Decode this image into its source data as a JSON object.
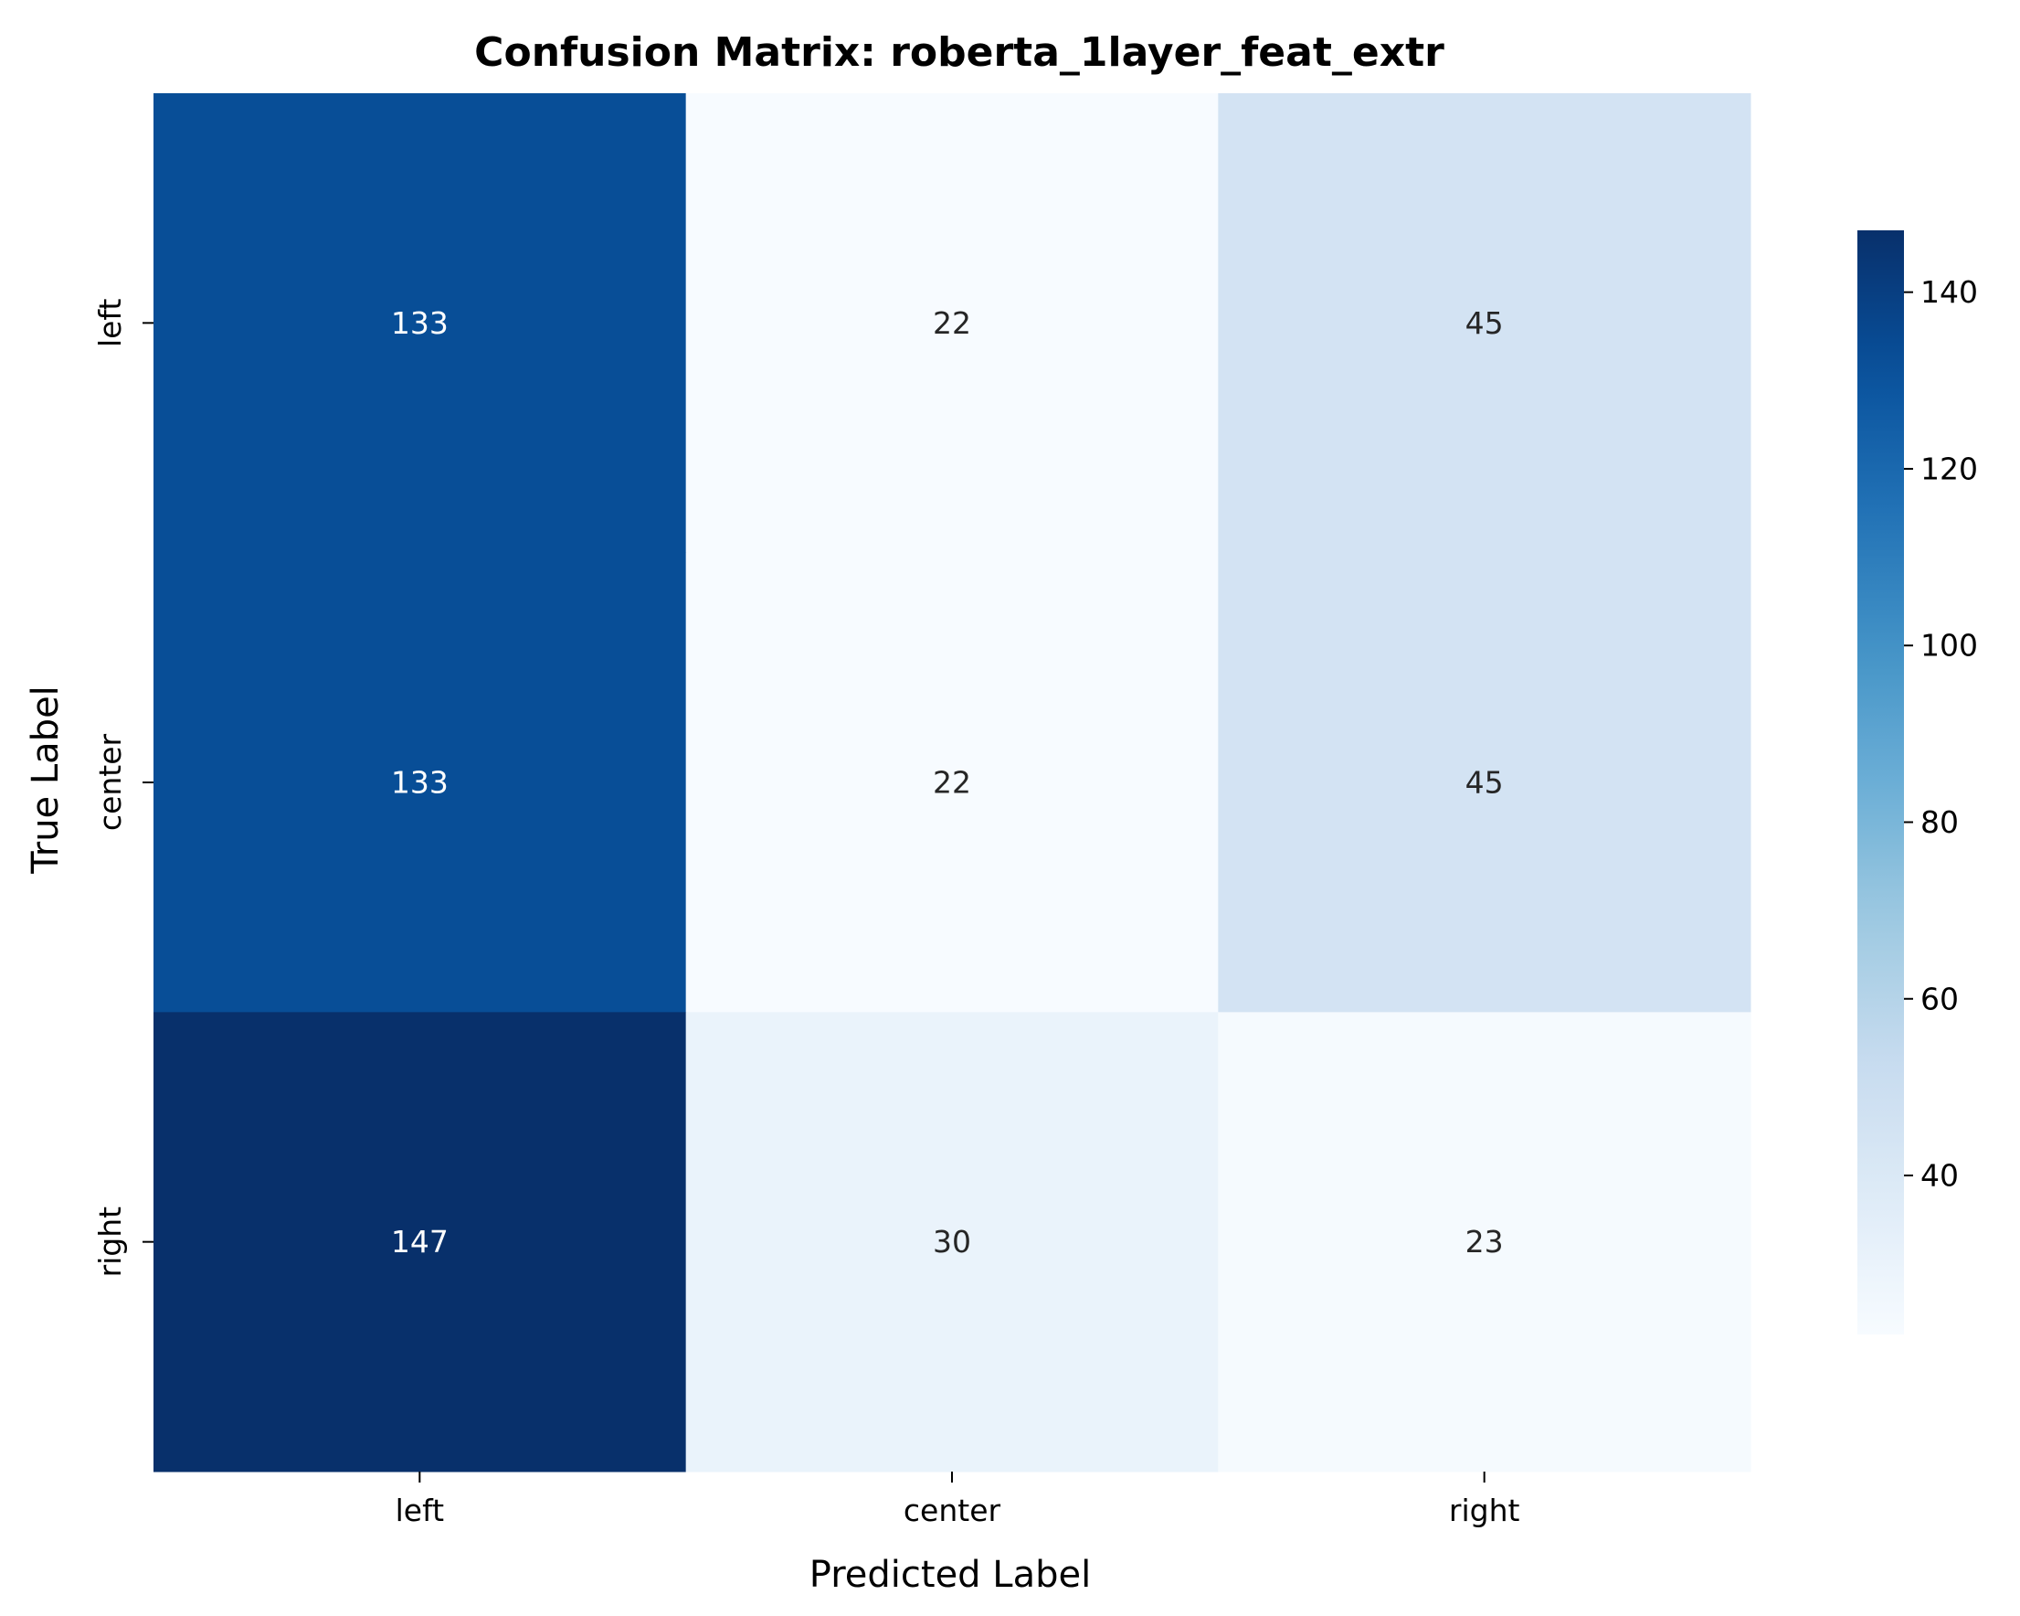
{
  "chart_data": {
    "type": "heatmap",
    "title": "Confusion Matrix: roberta_1layer_feat_extr",
    "xlabel": "Predicted Label",
    "ylabel": "True Label",
    "x_categories": [
      "left",
      "center",
      "right"
    ],
    "y_categories": [
      "left",
      "center",
      "right"
    ],
    "values": [
      [
        133,
        22,
        45
      ],
      [
        133,
        22,
        45
      ],
      [
        147,
        30,
        23
      ]
    ],
    "colormap": "Blues",
    "colorbar": {
      "vmin": 22,
      "vmax": 147,
      "ticks": [
        40,
        60,
        80,
        100,
        120,
        140
      ]
    },
    "annotations": true,
    "grid": false
  }
}
